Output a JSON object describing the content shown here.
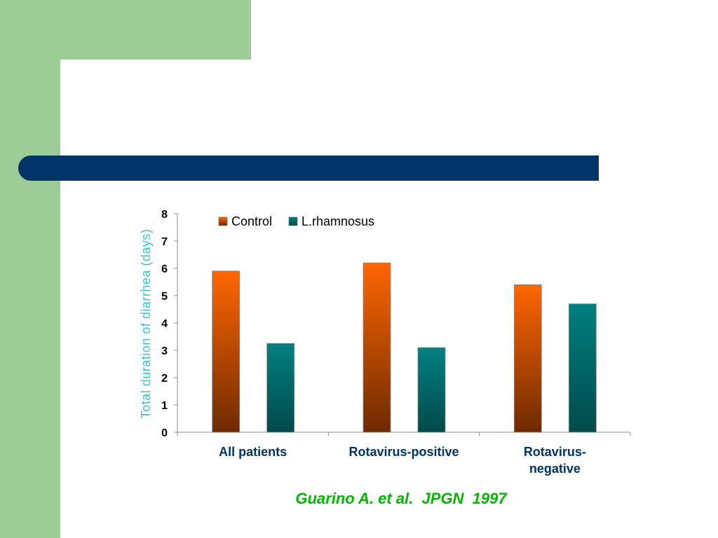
{
  "colors": {
    "background_green": "#9dcd97",
    "title_bar": "#003366",
    "axis_label": "#3cc6c6",
    "category_label": "#003366",
    "citation": "#00b800",
    "control_top": "#ff6600",
    "control_bottom": "#6e2a00",
    "rhamnosus_top": "#008080",
    "rhamnosus_bottom": "#004a4a"
  },
  "citation": "Guarino A. et al.  JPGN  1997",
  "chart_data": {
    "type": "bar",
    "title": "",
    "ylabel": "Total duration of diarrhea (days)",
    "xlabel": "",
    "ylim": [
      0,
      8
    ],
    "yticks": [
      0,
      1,
      2,
      3,
      4,
      5,
      6,
      7,
      8
    ],
    "grid": false,
    "legend_position": "top",
    "categories": [
      "All patients",
      "Rotavirus-positive",
      "Rotavirus-negative"
    ],
    "category_lines": [
      [
        "All patients"
      ],
      [
        "Rotavirus-positive"
      ],
      [
        "Rotavirus-",
        "negative"
      ]
    ],
    "series": [
      {
        "name": "Control",
        "values": [
          5.9,
          6.2,
          5.4
        ]
      },
      {
        "name": "L.rhamnosus",
        "values": [
          3.25,
          3.1,
          4.7
        ]
      }
    ]
  }
}
